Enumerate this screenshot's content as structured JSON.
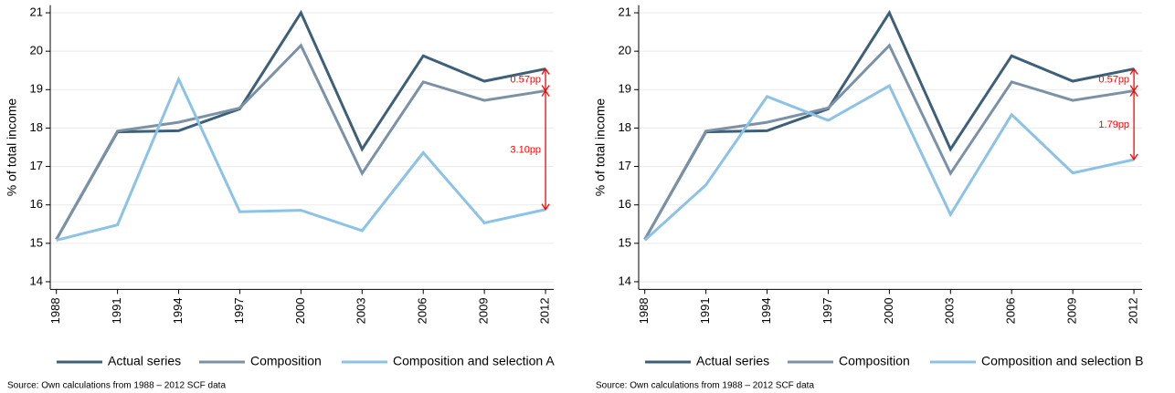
{
  "chart_data": [
    {
      "type": "line",
      "y_label": "% of total income",
      "x": [
        1988,
        1991,
        1994,
        1997,
        2000,
        2003,
        2006,
        2009,
        2012
      ],
      "xlim": [
        1987.7,
        2012.4
      ],
      "xticks": [
        1988,
        1991,
        1994,
        1997,
        2000,
        2003,
        2006,
        2009,
        2012
      ],
      "ylim": [
        13.8,
        21.2
      ],
      "yticks": [
        14,
        15,
        16,
        17,
        18,
        19,
        20,
        21
      ],
      "grid": true,
      "series": [
        {
          "name": "Actual series",
          "color": "#3e5f78",
          "values": [
            15.1,
            17.9,
            17.93,
            18.5,
            21.0,
            17.45,
            19.88,
            19.22,
            19.54
          ]
        },
        {
          "name": "Composition",
          "color": "#7b91a6",
          "values": [
            15.1,
            17.92,
            18.15,
            18.52,
            20.15,
            16.82,
            19.2,
            18.72,
            18.97
          ]
        },
        {
          "name": "Composition and selection A",
          "color": "#8cc2e6",
          "values": [
            15.08,
            15.48,
            19.27,
            15.82,
            15.86,
            15.33,
            17.36,
            15.53,
            15.88
          ]
        }
      ],
      "annotations": [
        {
          "text": "0.57pp",
          "x": 2012,
          "y_from": 19.54,
          "y_to": 18.97,
          "color": "#ff0000"
        },
        {
          "text": "3.10pp",
          "x": 2012,
          "y_from": 18.97,
          "y_to": 15.88,
          "color": "#ff0000"
        }
      ],
      "note": "Source: Own calculations from 1988 – 2012 SCF data"
    },
    {
      "type": "line",
      "y_label": "% of total income",
      "x": [
        1988,
        1991,
        1994,
        1997,
        2000,
        2003,
        2006,
        2009,
        2012
      ],
      "xlim": [
        1987.7,
        2012.4
      ],
      "xticks": [
        1988,
        1991,
        1994,
        1997,
        2000,
        2003,
        2006,
        2009,
        2012
      ],
      "ylim": [
        13.8,
        21.2
      ],
      "yticks": [
        14,
        15,
        16,
        17,
        18,
        19,
        20,
        21
      ],
      "grid": true,
      "series": [
        {
          "name": "Actual series",
          "color": "#3e5f78",
          "values": [
            15.1,
            17.9,
            17.93,
            18.5,
            21.0,
            17.45,
            19.88,
            19.22,
            19.54
          ]
        },
        {
          "name": "Composition",
          "color": "#7b91a6",
          "values": [
            15.1,
            17.92,
            18.15,
            18.52,
            20.15,
            16.82,
            19.2,
            18.72,
            18.97
          ]
        },
        {
          "name": "Composition and selection B",
          "color": "#8cc2e6",
          "values": [
            15.08,
            16.52,
            18.82,
            18.2,
            19.1,
            15.75,
            18.35,
            16.83,
            17.18
          ]
        }
      ],
      "annotations": [
        {
          "text": "0.57pp",
          "x": 2012,
          "y_from": 19.54,
          "y_to": 18.97,
          "color": "#ff0000"
        },
        {
          "text": "1.79pp",
          "x": 2012,
          "y_from": 18.97,
          "y_to": 17.18,
          "color": "#ff0000"
        }
      ],
      "note": "Source: Own calculations from 1988 – 2012 SCF data"
    }
  ]
}
